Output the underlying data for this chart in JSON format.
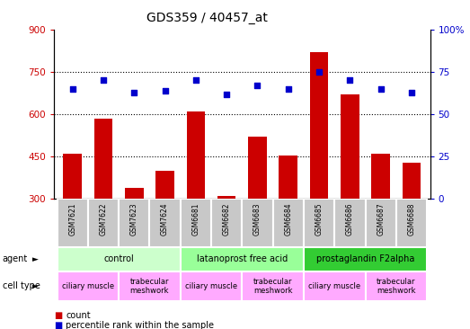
{
  "title": "GDS359 / 40457_at",
  "samples": [
    "GSM7621",
    "GSM7622",
    "GSM7623",
    "GSM7624",
    "GSM6681",
    "GSM6682",
    "GSM6683",
    "GSM6684",
    "GSM6685",
    "GSM6686",
    "GSM6687",
    "GSM6688"
  ],
  "counts": [
    460,
    585,
    340,
    400,
    610,
    310,
    520,
    455,
    820,
    670,
    460,
    430
  ],
  "percentiles": [
    65,
    70,
    63,
    64,
    70,
    62,
    67,
    65,
    75,
    70,
    65,
    63
  ],
  "ylim_left": [
    300,
    900
  ],
  "ylim_right": [
    0,
    100
  ],
  "yticks_left": [
    300,
    450,
    600,
    750,
    900
  ],
  "yticks_right": [
    0,
    25,
    50,
    75,
    100
  ],
  "ytick_labels_right": [
    "0",
    "25",
    "50",
    "75",
    "100%"
  ],
  "bar_color": "#cc0000",
  "dot_color": "#0000cc",
  "agent_groups": [
    {
      "label": "control",
      "start": 0,
      "end": 3,
      "color": "#ccffcc"
    },
    {
      "label": "latanoprost free acid",
      "start": 4,
      "end": 7,
      "color": "#99ff99"
    },
    {
      "label": "prostaglandin F2alpha",
      "start": 8,
      "end": 11,
      "color": "#33cc33"
    }
  ],
  "cell_type_groups": [
    {
      "label": "ciliary muscle",
      "start": 0,
      "end": 1,
      "color": "#ffaaff"
    },
    {
      "label": "trabecular\nmeshwork",
      "start": 2,
      "end": 3,
      "color": "#ffaaff"
    },
    {
      "label": "ciliary muscle",
      "start": 4,
      "end": 5,
      "color": "#ffaaff"
    },
    {
      "label": "trabecular\nmeshwork",
      "start": 6,
      "end": 7,
      "color": "#ffaaff"
    },
    {
      "label": "ciliary muscle",
      "start": 8,
      "end": 9,
      "color": "#ffaaff"
    },
    {
      "label": "trabecular\nmeshwork",
      "start": 10,
      "end": 11,
      "color": "#ffaaff"
    }
  ]
}
